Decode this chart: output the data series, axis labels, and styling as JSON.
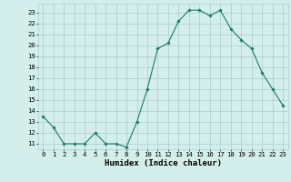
{
  "x": [
    0,
    1,
    2,
    3,
    4,
    5,
    6,
    7,
    8,
    9,
    10,
    11,
    12,
    13,
    14,
    15,
    16,
    17,
    18,
    19,
    20,
    21,
    22,
    23
  ],
  "y": [
    13.5,
    12.5,
    11.0,
    11.0,
    11.0,
    12.0,
    11.0,
    11.0,
    10.7,
    13.0,
    16.0,
    19.7,
    20.2,
    22.2,
    23.2,
    23.2,
    22.7,
    23.2,
    21.5,
    20.5,
    19.7,
    17.5,
    16.0,
    14.5
  ],
  "line_color": "#1a7a6e",
  "marker": "D",
  "markersize": 1.8,
  "linewidth": 0.8,
  "bg_color": "#d4eeec",
  "grid_color": "#a8ceca",
  "xlabel": "Humidex (Indice chaleur)",
  "ylim": [
    10.5,
    23.8
  ],
  "xlim": [
    -0.5,
    23.5
  ],
  "yticks": [
    11,
    12,
    13,
    14,
    15,
    16,
    17,
    18,
    19,
    20,
    21,
    22,
    23
  ],
  "xticks": [
    0,
    1,
    2,
    3,
    4,
    5,
    6,
    7,
    8,
    9,
    10,
    11,
    12,
    13,
    14,
    15,
    16,
    17,
    18,
    19,
    20,
    21,
    22,
    23
  ],
  "tick_fontsize": 5.2,
  "xlabel_fontsize": 6.5
}
